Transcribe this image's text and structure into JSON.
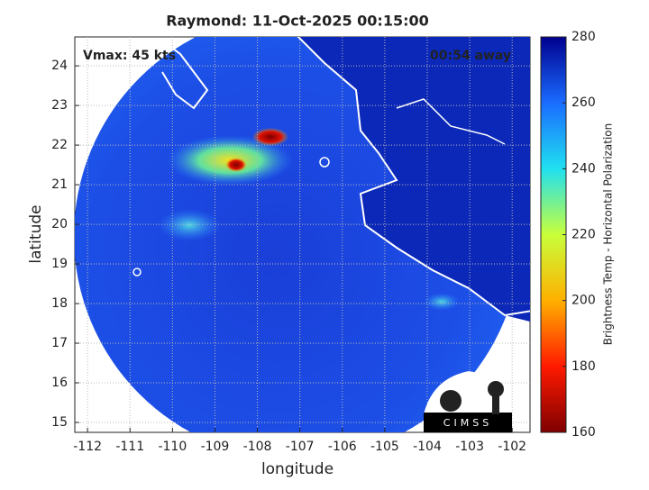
{
  "title": "Raymond: 11-Oct-2025 00:15:00",
  "annotations": {
    "vmax": "Vmax: 45 kts",
    "away": "00:54 away"
  },
  "axes": {
    "xlabel": "longitude",
    "ylabel": "latitude",
    "xlim": [
      -112.3,
      -101.58
    ],
    "ylim": [
      14.75,
      24.73
    ],
    "xticks": [
      -112,
      -111,
      -110,
      -109,
      -108,
      -107,
      -106,
      -105,
      -104,
      -103,
      -102
    ],
    "yticks": [
      15,
      16,
      17,
      18,
      19,
      20,
      21,
      22,
      23,
      24
    ],
    "grid": true
  },
  "colorbar": {
    "label": "Brightness Temp - Horizontal Polarization",
    "lim": [
      160,
      280
    ],
    "ticks": [
      160,
      180,
      200,
      220,
      240,
      260,
      280
    ],
    "colors": [
      "#7f0000",
      "#ff1a00",
      "#ffb000",
      "#c8ff3a",
      "#20e0f0",
      "#1a6cff",
      "#00008f"
    ]
  },
  "logo": "CIMSS"
}
